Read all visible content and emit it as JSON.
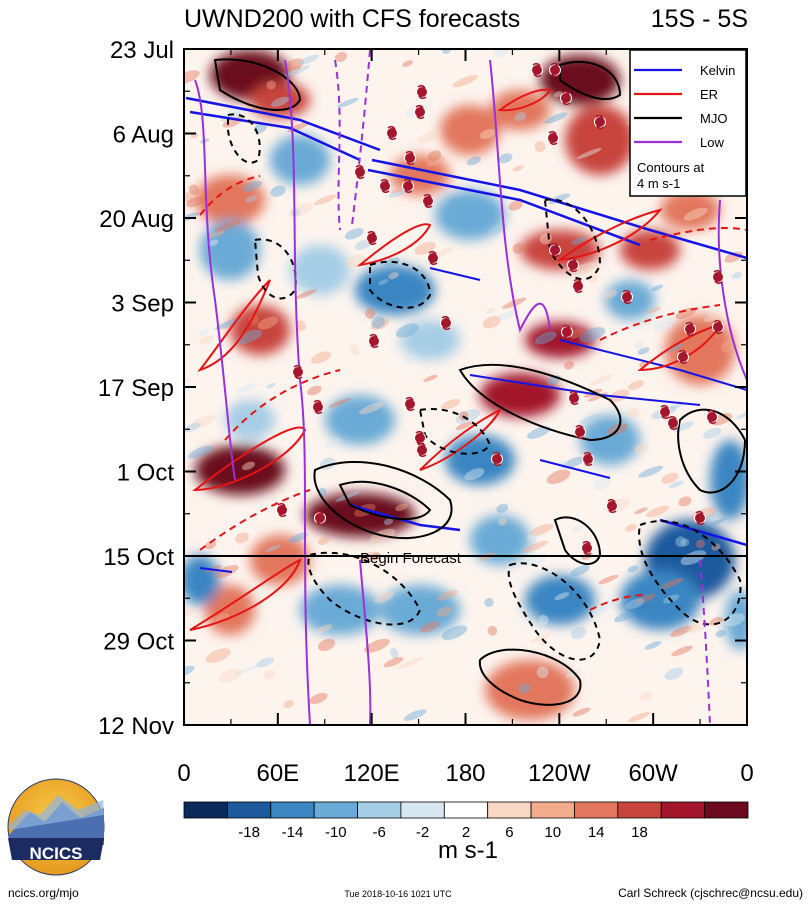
{
  "header": {
    "title": "UWND200 with CFS forecasts",
    "region": "15S - 5S"
  },
  "legend": {
    "items": [
      {
        "label": "Kelvin",
        "color": "#1414e6"
      },
      {
        "label": "ER",
        "color": "#e61414"
      },
      {
        "label": "MJO",
        "color": "#000000"
      },
      {
        "label": "Low",
        "color": "#9b30d9"
      }
    ],
    "note_line1": "Contours at",
    "note_line2": "4 m s-1"
  },
  "forecast_label": "Begin Forecast",
  "colorbar": {
    "labels": [
      "-18",
      "-14",
      "-10",
      "-6",
      "-2",
      "2",
      "6",
      "10",
      "14",
      "18"
    ],
    "colors": [
      "#0a2a5c",
      "#1f5a9e",
      "#3a86c2",
      "#6aaad6",
      "#a6cde6",
      "#d8e8f2",
      "#ffffff",
      "#f8d7c4",
      "#f2ab8c",
      "#e2775d",
      "#c8453d",
      "#a3162b",
      "#6b0a1e"
    ],
    "unit": "m s-1"
  },
  "footer": {
    "left": "ncics.org/mjo",
    "center": "Tue 2018-10-16 1021 UTC",
    "right": "Carl Schreck (cjschrec@ncsu.edu)",
    "logo_text": "NCICS"
  },
  "chart_data": {
    "type": "heatmap",
    "title": "UWND200 with CFS forecasts",
    "subtitle": "15S - 5S",
    "xlabel": "",
    "ylabel": "",
    "x_ticks": [
      "0",
      "60E",
      "120E",
      "180",
      "120W",
      "60W",
      "0"
    ],
    "x_tick_lon": [
      0,
      60,
      120,
      180,
      240,
      300,
      360
    ],
    "y_ticks": [
      "23 Jul",
      "6 Aug",
      "20 Aug",
      "3 Sep",
      "17 Sep",
      "1 Oct",
      "15 Oct",
      "29 Oct",
      "12 Nov"
    ],
    "y_tick_day": [
      0,
      14,
      28,
      42,
      56,
      70,
      84,
      98,
      112
    ],
    "xlim": [
      0,
      360
    ],
    "ylim": [
      "23 Jul",
      "12 Nov"
    ],
    "forecast_start": "15 Oct",
    "contour_interval": "4 m s-1",
    "colorbar_levels": [
      -18,
      -14,
      -10,
      -6,
      -2,
      2,
      6,
      10,
      14,
      18
    ],
    "series": [
      {
        "name": "Kelvin",
        "color": "#1414e6"
      },
      {
        "name": "ER",
        "color": "#e61414"
      },
      {
        "name": "MJO",
        "color": "#000000"
      },
      {
        "name": "Low",
        "color": "#9b30d9"
      }
    ]
  }
}
